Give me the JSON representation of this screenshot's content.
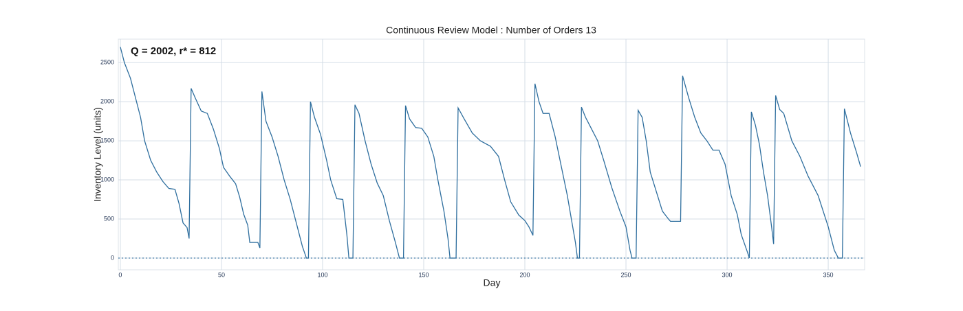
{
  "chart_data": {
    "type": "line",
    "title": "Continuous Review Model : Number of Orders 13",
    "annotation": "Q = 2002, r* = 812",
    "xlabel": "Day",
    "ylabel": "Inventory Level (units)",
    "xlim": [
      -1,
      368
    ],
    "ylim": [
      -150,
      2800
    ],
    "xticks": [
      0,
      50,
      100,
      150,
      200,
      250,
      300,
      350
    ],
    "yticks": [
      0,
      500,
      1000,
      1500,
      2000,
      2500
    ],
    "grid": true,
    "reference_line": 0,
    "series": [
      {
        "color": "#2e6e9e",
        "x": [
          0,
          2,
          5,
          7,
          10,
          12,
          15,
          18,
          21,
          24,
          27,
          29,
          31,
          33,
          34,
          35,
          37,
          40,
          43,
          46,
          49,
          51,
          54,
          57,
          59,
          61,
          63,
          64,
          68,
          69,
          70,
          72,
          75,
          78,
          81,
          84,
          87,
          90,
          92,
          93,
          94,
          96,
          99,
          102,
          104,
          107,
          110,
          112,
          113,
          115,
          116,
          118,
          121,
          124,
          127,
          130,
          133,
          136,
          138,
          140,
          141,
          143,
          146,
          149,
          152,
          155,
          157,
          160,
          162,
          163,
          166,
          167,
          170,
          174,
          178,
          183,
          187,
          190,
          193,
          197,
          200,
          202,
          204,
          205,
          207,
          209,
          212,
          215,
          217,
          219,
          221,
          223,
          225,
          226,
          227,
          228,
          230,
          233,
          236,
          239,
          243,
          247,
          250,
          252,
          253,
          255,
          256,
          258,
          260,
          262,
          265,
          268,
          271,
          272,
          277,
          278,
          281,
          284,
          287,
          290,
          293,
          296,
          299,
          302,
          305,
          307,
          310,
          311,
          312,
          314,
          316,
          318,
          320,
          322,
          323,
          324,
          326,
          328,
          332,
          336,
          340,
          345,
          350,
          353,
          355,
          357,
          358,
          361,
          364,
          366
        ],
        "values": [
          2700,
          2500,
          2300,
          2100,
          1800,
          1500,
          1250,
          1100,
          980,
          890,
          880,
          700,
          450,
          390,
          250,
          2170,
          2050,
          1880,
          1850,
          1650,
          1400,
          1160,
          1050,
          950,
          780,
          560,
          420,
          200,
          200,
          130,
          2130,
          1750,
          1550,
          1300,
          1000,
          750,
          450,
          150,
          0,
          0,
          2000,
          1800,
          1580,
          1250,
          1000,
          760,
          750,
          300,
          0,
          0,
          1960,
          1850,
          1500,
          1200,
          960,
          800,
          480,
          200,
          0,
          0,
          1950,
          1780,
          1670,
          1660,
          1550,
          1300,
          1000,
          600,
          250,
          0,
          0,
          1920,
          1780,
          1600,
          1500,
          1430,
          1300,
          1000,
          720,
          550,
          480,
          400,
          290,
          2230,
          2000,
          1850,
          1850,
          1550,
          1300,
          1050,
          800,
          500,
          200,
          0,
          0,
          1930,
          1800,
          1650,
          1500,
          1250,
          900,
          600,
          400,
          100,
          0,
          0,
          1890,
          1800,
          1500,
          1100,
          850,
          600,
          500,
          470,
          470,
          2330,
          2050,
          1800,
          1600,
          1500,
          1380,
          1380,
          1200,
          800,
          560,
          300,
          80,
          0,
          1870,
          1700,
          1450,
          1100,
          800,
          400,
          180,
          2080,
          1900,
          1850,
          1500,
          1300,
          1050,
          800,
          400,
          100,
          0,
          0,
          1910,
          1600,
          1350,
          1170
        ]
      }
    ]
  }
}
